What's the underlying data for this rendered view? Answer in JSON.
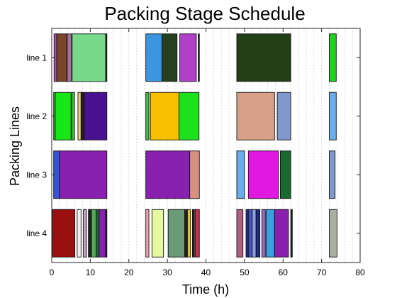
{
  "chart_data": {
    "type": "gantt",
    "title": "Packing Stage Schedule",
    "xlabel": "Time (h)",
    "ylabel": "Packing Lines",
    "xlim": [
      0,
      80
    ],
    "xticks": [
      0,
      10,
      20,
      30,
      40,
      50,
      60,
      70,
      80
    ],
    "grid": "vertical dotted, 2 h spacing",
    "rows": [
      "line 1",
      "line 2",
      "line 3",
      "line 4"
    ],
    "tasks": [
      {
        "row": "line 1",
        "start": 0.6,
        "end": 1.3,
        "color": "#a34fb3"
      },
      {
        "row": "line 1",
        "start": 1.3,
        "end": 3.9,
        "color": "#7a4528"
      },
      {
        "row": "line 1",
        "start": 4.0,
        "end": 5.1,
        "color": "#a870a0"
      },
      {
        "row": "line 1",
        "start": 5.3,
        "end": 14.0,
        "color": "#78d98a"
      },
      {
        "row": "line 1",
        "start": 14.0,
        "end": 14.3,
        "color": "#222222"
      },
      {
        "row": "line 1",
        "start": 24.4,
        "end": 28.6,
        "color": "#3b95e0"
      },
      {
        "row": "line 1",
        "start": 28.6,
        "end": 32.5,
        "color": "#274020"
      },
      {
        "row": "line 1",
        "start": 33.2,
        "end": 37.5,
        "color": "#b040c8"
      },
      {
        "row": "line 1",
        "start": 38.0,
        "end": 38.3,
        "color": "#222222"
      },
      {
        "row": "line 1",
        "start": 48.0,
        "end": 62.0,
        "color": "#233f17"
      },
      {
        "row": "line 1",
        "start": 72.0,
        "end": 73.8,
        "color": "#1ed21e"
      },
      {
        "row": "line 2",
        "start": 0.5,
        "end": 0.9,
        "color": "#1ed21e"
      },
      {
        "row": "line 2",
        "start": 0.9,
        "end": 5.0,
        "color": "#19e619"
      },
      {
        "row": "line 2",
        "start": 5.2,
        "end": 5.9,
        "color": "#3cc63c"
      },
      {
        "row": "line 2",
        "start": 6.8,
        "end": 7.6,
        "color": "#f4d070"
      },
      {
        "row": "line 2",
        "start": 7.6,
        "end": 8.4,
        "color": "#222222"
      },
      {
        "row": "line 2",
        "start": 8.4,
        "end": 14.3,
        "color": "#4a1290"
      },
      {
        "row": "line 2",
        "start": 24.4,
        "end": 25.2,
        "color": "#3cc63c"
      },
      {
        "row": "line 2",
        "start": 25.6,
        "end": 33.0,
        "color": "#f6c000"
      },
      {
        "row": "line 2",
        "start": 33.0,
        "end": 38.2,
        "color": "#1ee11e"
      },
      {
        "row": "line 2",
        "start": 48.0,
        "end": 57.8,
        "color": "#d8a088"
      },
      {
        "row": "line 2",
        "start": 58.5,
        "end": 62.0,
        "color": "#8098cc"
      },
      {
        "row": "line 2",
        "start": 72.0,
        "end": 73.8,
        "color": "#6aacec"
      },
      {
        "row": "line 3",
        "start": 0.5,
        "end": 2.0,
        "color": "#3355dd"
      },
      {
        "row": "line 3",
        "start": 2.0,
        "end": 14.3,
        "color": "#8a20b0"
      },
      {
        "row": "line 3",
        "start": 24.4,
        "end": 35.8,
        "color": "#8a20b0"
      },
      {
        "row": "line 3",
        "start": 35.8,
        "end": 38.3,
        "color": "#d89080"
      },
      {
        "row": "line 3",
        "start": 48.0,
        "end": 50.0,
        "color": "#6aacec"
      },
      {
        "row": "line 3",
        "start": 51.0,
        "end": 58.8,
        "color": "#e018e0"
      },
      {
        "row": "line 3",
        "start": 59.3,
        "end": 62.0,
        "color": "#1a6a30"
      },
      {
        "row": "line 3",
        "start": 72.0,
        "end": 73.5,
        "color": "#8098cc"
      },
      {
        "row": "line 4",
        "start": 0.2,
        "end": 6.0,
        "color": "#9a1010"
      },
      {
        "row": "line 4",
        "start": 6.6,
        "end": 7.6,
        "color": "#f0f0f0"
      },
      {
        "row": "line 4",
        "start": 8.2,
        "end": 9.0,
        "color": "#c0a0c0"
      },
      {
        "row": "line 4",
        "start": 9.5,
        "end": 10.3,
        "color": "#222222"
      },
      {
        "row": "line 4",
        "start": 10.3,
        "end": 11.5,
        "color": "#55aa55"
      },
      {
        "row": "line 4",
        "start": 11.5,
        "end": 12.3,
        "color": "#1a6a30"
      },
      {
        "row": "line 4",
        "start": 12.3,
        "end": 14.0,
        "color": "#8a20b0"
      },
      {
        "row": "line 4",
        "start": 14.0,
        "end": 14.3,
        "color": "#222222"
      },
      {
        "row": "line 4",
        "start": 24.4,
        "end": 25.2,
        "color": "#f4a0b0"
      },
      {
        "row": "line 4",
        "start": 26.0,
        "end": 29.0,
        "color": "#e6f8a0"
      },
      {
        "row": "line 4",
        "start": 30.2,
        "end": 34.5,
        "color": "#6a9a78"
      },
      {
        "row": "line 4",
        "start": 34.5,
        "end": 35.2,
        "color": "#222222"
      },
      {
        "row": "line 4",
        "start": 35.2,
        "end": 36.0,
        "color": "#e0c030"
      },
      {
        "row": "line 4",
        "start": 36.5,
        "end": 37.0,
        "color": "#222222"
      },
      {
        "row": "line 4",
        "start": 37.2,
        "end": 38.3,
        "color": "#d02a4a"
      },
      {
        "row": "line 4",
        "start": 48.0,
        "end": 49.6,
        "color": "#b06080"
      },
      {
        "row": "line 4",
        "start": 50.4,
        "end": 51.0,
        "color": "#2a2a99"
      },
      {
        "row": "line 4",
        "start": 51.0,
        "end": 52.0,
        "color": "#4455bb"
      },
      {
        "row": "line 4",
        "start": 52.0,
        "end": 53.0,
        "color": "#8aa0e0"
      },
      {
        "row": "line 4",
        "start": 53.0,
        "end": 54.0,
        "color": "#1e2a80"
      },
      {
        "row": "line 4",
        "start": 54.5,
        "end": 55.4,
        "color": "#9966cc"
      },
      {
        "row": "line 4",
        "start": 55.6,
        "end": 57.8,
        "color": "#3aa0e0"
      },
      {
        "row": "line 4",
        "start": 57.8,
        "end": 61.4,
        "color": "#8a20b0"
      },
      {
        "row": "line 4",
        "start": 62.0,
        "end": 62.4,
        "color": "#222222"
      },
      {
        "row": "line 4",
        "start": 72.0,
        "end": 74.0,
        "color": "#a8b0a0"
      }
    ]
  }
}
